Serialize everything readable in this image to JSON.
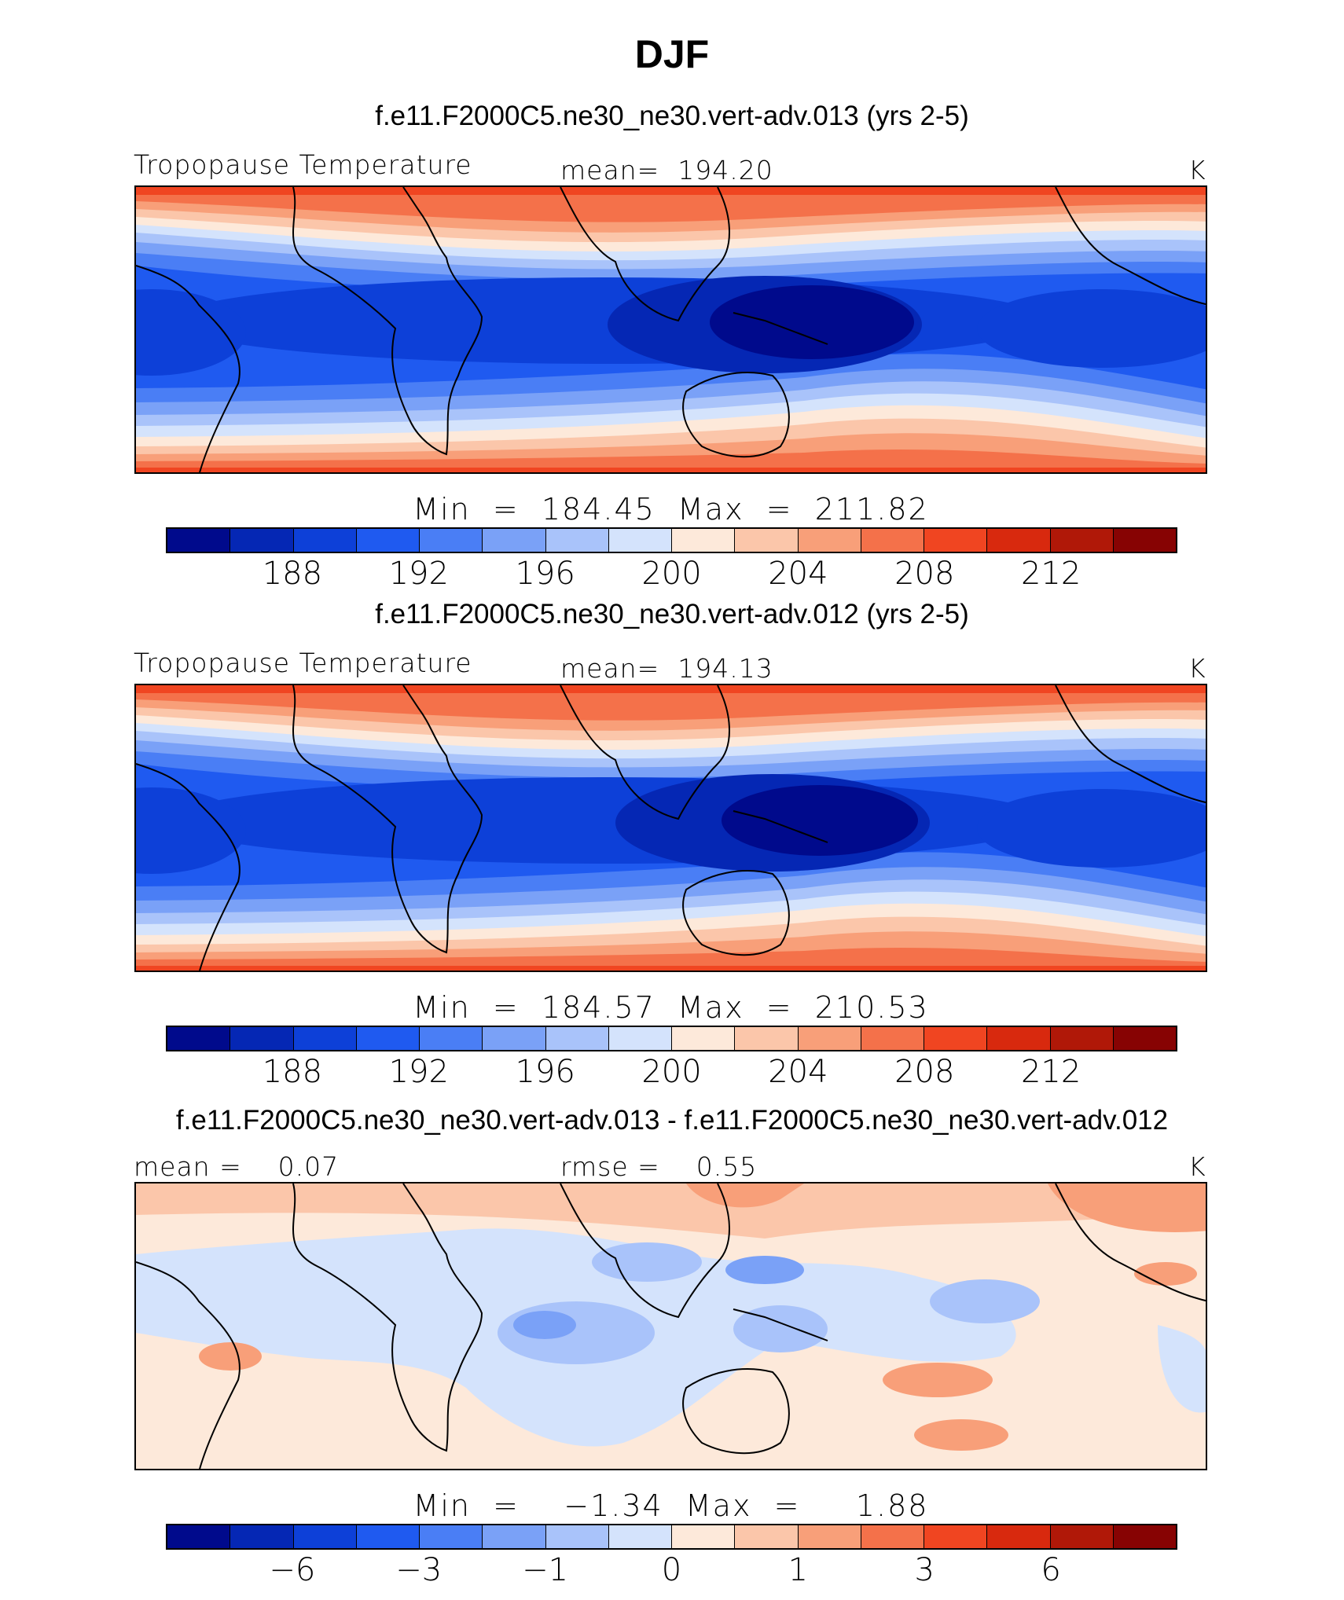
{
  "title": "DJF",
  "colorbar_colors": [
    "#000a8c",
    "#0527b4",
    "#0d40d8",
    "#1f5af0",
    "#4a7ef5",
    "#7aa1f7",
    "#a9c3fa",
    "#d4e3fc",
    "#fde9da",
    "#fbc6aa",
    "#f89f79",
    "#f4714a",
    "#f04521",
    "#d8290e",
    "#b01808",
    "#870303"
  ],
  "panels": [
    {
      "case_title": "f.e11.F2000C5.ne30_ne30.vert-adv.013 (yrs 2-5)",
      "left_label": "Tropopause Temperature",
      "center_label": "mean=  194.20",
      "units": "K",
      "stats": "Min  =  184.45  Max  =  211.82",
      "ticks": [
        "188",
        "192",
        "196",
        "200",
        "204",
        "208",
        "212"
      ]
    },
    {
      "case_title": "f.e11.F2000C5.ne30_ne30.vert-adv.012 (yrs 2-5)",
      "left_label": "Tropopause Temperature",
      "center_label": "mean=  194.13",
      "units": "K",
      "stats": "Min  =  184.57  Max  =  210.53",
      "ticks": [
        "188",
        "192",
        "196",
        "200",
        "204",
        "208",
        "212"
      ]
    },
    {
      "case_title": "f.e11.F2000C5.ne30_ne30.vert-adv.013 - f.e11.F2000C5.ne30_ne30.vert-adv.012",
      "left_label": "mean =    0.07",
      "center_label": "rmse =    0.55",
      "units": "K",
      "stats": "Min  =    −1.34  Max  =     1.88",
      "ticks": [
        "−6",
        "−3",
        "−1",
        "0",
        "1",
        "3",
        "6"
      ]
    }
  ]
}
